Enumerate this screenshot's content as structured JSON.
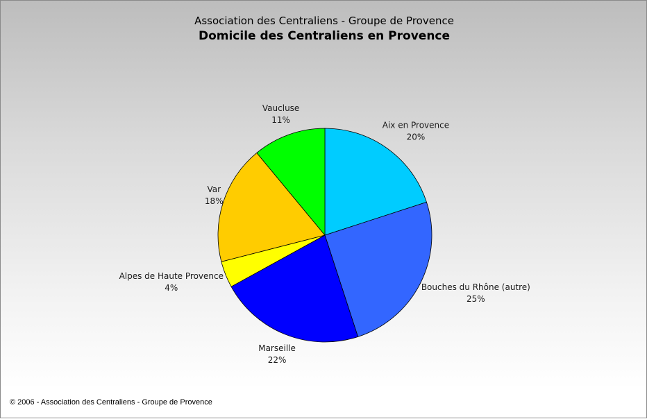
{
  "chart_data": {
    "type": "pie",
    "title": "Domicile des Centraliens en Provence",
    "subtitle": "Association des Centraliens - Groupe de Provence",
    "slices": [
      {
        "label": "Aix en Provence",
        "value": 20,
        "value_label": "20%",
        "color": "#00ccff"
      },
      {
        "label": "Bouches du Rhône (autre)",
        "value": 25,
        "value_label": "25%",
        "color": "#3366ff"
      },
      {
        "label": "Marseille",
        "value": 22,
        "value_label": "22%",
        "color": "#0000ff"
      },
      {
        "label": "Alpes de Haute Provence",
        "value": 4,
        "value_label": "4%",
        "color": "#ffff00"
      },
      {
        "label": "Var",
        "value": 18,
        "value_label": "18%",
        "color": "#ffcc00"
      },
      {
        "label": "Vaucluse",
        "value": 11,
        "value_label": "11%",
        "color": "#00ff00"
      }
    ],
    "start_direction": "top",
    "direction": "clockwise",
    "legend": "none",
    "background": [
      "#bdbdbd",
      "#ffffff"
    ]
  },
  "footer": {
    "text": "© 2006 - Association des Centraliens - Groupe de Provence"
  }
}
